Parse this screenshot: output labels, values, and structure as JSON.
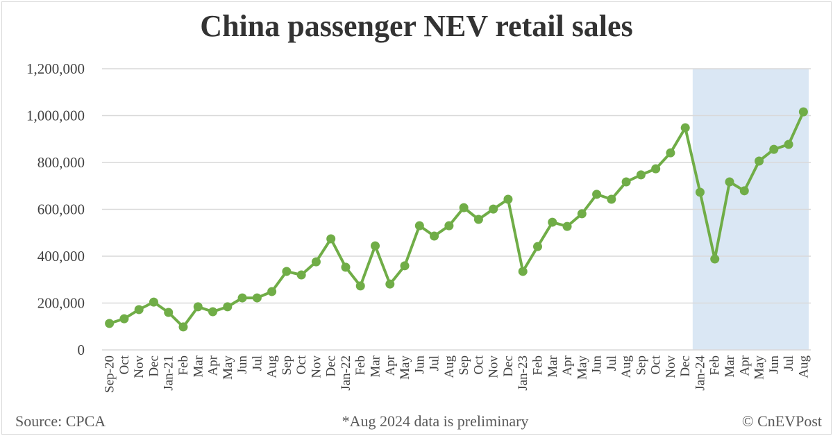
{
  "title": "China passenger NEV retail sales",
  "footer": {
    "source": "Source: CPCA",
    "note": "*Aug 2024 data is preliminary",
    "credit": "© CnEVPost"
  },
  "colors": {
    "line": "#70ad47",
    "highlight": "#dae7f4",
    "grid": "#d9d9d9",
    "text": "#404040"
  },
  "chart_data": {
    "type": "line",
    "title": "China passenger NEV retail sales",
    "xlabel": "",
    "ylabel": "",
    "ylim": [
      0,
      1200000
    ],
    "yticks": [
      0,
      200000,
      400000,
      600000,
      800000,
      1000000,
      1200000
    ],
    "ytick_labels": [
      "0",
      "200,000",
      "400,000",
      "600,000",
      "800,000",
      "1,000,000",
      "1,200,000"
    ],
    "grid": true,
    "legend": "none",
    "highlight_range": [
      "Jan-24",
      "Aug"
    ],
    "categories": [
      "Sep-20",
      "Oct",
      "Nov",
      "Dec",
      "Jan-21",
      "Feb",
      "Mar",
      "Apr",
      "May",
      "Jun",
      "Jul",
      "Aug",
      "Sep",
      "Oct",
      "Nov",
      "Dec",
      "Jan-22",
      "Feb",
      "Mar",
      "Apr",
      "May",
      "Jun",
      "Jul",
      "Aug",
      "Sep",
      "Oct",
      "Nov",
      "Dec",
      "Jan-23",
      "Feb",
      "Mar",
      "Apr",
      "May",
      "Jun",
      "Jul",
      "Aug",
      "Sep",
      "Oct",
      "Nov",
      "Dec",
      "Jan-24",
      "Feb",
      "Mar",
      "Apr",
      "May",
      "Jun",
      "Jul",
      "Aug"
    ],
    "series": [
      {
        "name": "Passenger NEV retail sales",
        "values": [
          113000,
          133000,
          172000,
          204000,
          160000,
          98000,
          184000,
          163000,
          184000,
          222000,
          222000,
          249000,
          335000,
          320000,
          376000,
          474000,
          353000,
          273000,
          444000,
          281000,
          359000,
          530000,
          486000,
          530000,
          607000,
          557000,
          601000,
          643000,
          335000,
          441000,
          545000,
          527000,
          581000,
          664000,
          643000,
          717000,
          747000,
          773000,
          841000,
          948000,
          673000,
          388000,
          717000,
          679000,
          806000,
          856000,
          877000,
          1016000
        ]
      }
    ]
  }
}
